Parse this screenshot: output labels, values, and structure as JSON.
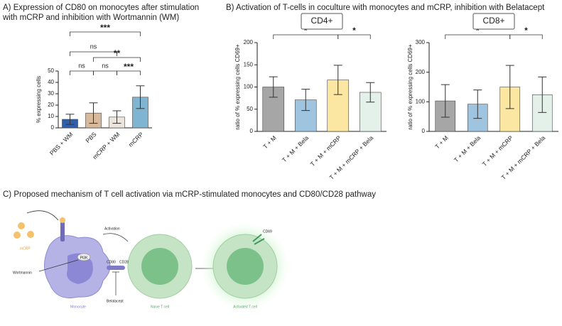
{
  "panel_b_title": "B) Activation of T-cells in coculture with monocytes and mCRP, inhibition with Belatacept",
  "panel_c_title": "C) Proposed mechanism of T cell activation via mCRP-stimulated monocytes and CD80/CD28 pathway",
  "chart_data": [
    {
      "type": "bar",
      "title": [
        "A) Expression of CD80 on monocytes after stimulation",
        "with mCRP and inhibition with Wortmannin (WM)"
      ],
      "ylabel": "% expressing cells",
      "categories": [
        "PBS + WM",
        "PBS",
        "mCRP + WM",
        "mCRP"
      ],
      "values": [
        7.5,
        13,
        9.5,
        27
      ],
      "errors": [
        4.5,
        9,
        5.5,
        10
      ],
      "colors": [
        "#2f5fa8",
        "#d9b99b",
        "#ebe5dd",
        "#7fb5d0"
      ],
      "ylim": [
        0,
        50
      ],
      "yticks": [
        0,
        10,
        20,
        30,
        40,
        50
      ],
      "annotations": [
        "ns",
        "ns",
        "***",
        "ns",
        "**",
        "***"
      ]
    },
    {
      "type": "bar",
      "title": "CD4+",
      "ylabel": "ratio of % expressing cells CD69+",
      "categories": [
        "T + M",
        "T + M + Bela",
        "T + M + mCRP",
        "T + M + mCRP + Bela"
      ],
      "values": [
        100,
        71,
        116,
        88
      ],
      "errors": [
        23,
        24,
        33,
        22
      ],
      "colors": [
        "#a6a6a6",
        "#9ec4e0",
        "#fbe7a1",
        "#e3f1ea"
      ],
      "ylim": [
        0,
        200
      ],
      "yticks": [
        0,
        50,
        100,
        150,
        200
      ],
      "annotations": [
        "*",
        "*"
      ]
    },
    {
      "type": "bar",
      "title": "CD8+",
      "ylabel": "ratio of % expressing cells CD69+",
      "categories": [
        "T + M",
        "T + M + Bela",
        "T + M + mCRP",
        "T + M + mCRP + Bela"
      ],
      "values": [
        103,
        92,
        150,
        124
      ],
      "errors": [
        55,
        48,
        73,
        60
      ],
      "colors": [
        "#a6a6a6",
        "#9ec4e0",
        "#fbe7a1",
        "#e3f1ea"
      ],
      "ylim": [
        0,
        300
      ],
      "yticks": [
        0,
        100,
        200,
        300
      ],
      "annotations": [
        "*",
        "*"
      ]
    }
  ],
  "diagram": {
    "mcrp": "mCRP",
    "wortmannin": "Wortmannin",
    "pi3k": "PI3K",
    "activation": "Activation",
    "cd80": "CD80",
    "cd28": "CD28",
    "belatacept": "Belatacept",
    "monocyte": "Monocyte",
    "naive": "Naive T cell",
    "activated": "Activated T cell",
    "cd69": "CD69"
  }
}
